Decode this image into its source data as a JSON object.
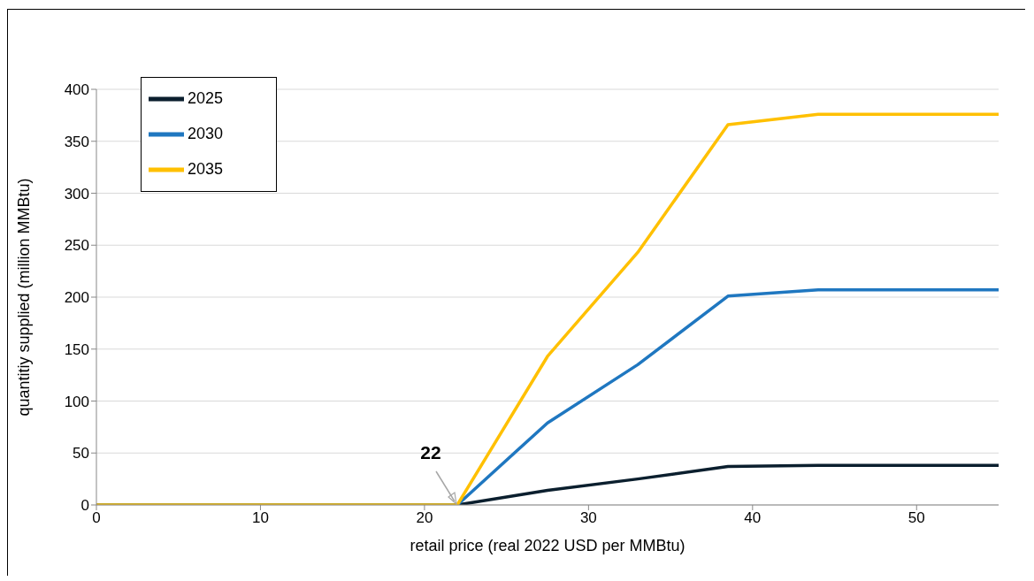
{
  "chart_data": {
    "type": "line",
    "xlabel": "retail price (real 2022 USD per MMBtu)",
    "ylabel": "quantitiy supplied (million MMBtu)",
    "x": [
      0,
      22,
      27.5,
      33,
      38.5,
      44,
      55
    ],
    "series": [
      {
        "name": "2025",
        "color": "#0b1f2e",
        "values": [
          0,
          0,
          14,
          25,
          37,
          38,
          38
        ]
      },
      {
        "name": "2030",
        "color": "#1f77c0",
        "values": [
          0,
          0,
          79,
          135,
          201,
          207,
          207
        ]
      },
      {
        "name": "2035",
        "color": "#ffc000",
        "values": [
          0,
          0,
          143,
          243,
          366,
          376,
          376
        ]
      }
    ],
    "xlim": [
      0,
      55
    ],
    "xticks": [
      0,
      10,
      20,
      30,
      40,
      50
    ],
    "ylim": [
      0,
      400
    ],
    "yticks": [
      0,
      50,
      100,
      150,
      200,
      250,
      300,
      350,
      400
    ],
    "grid": "y",
    "legend": "top left",
    "marker": "none",
    "line_style": "solid",
    "annotations": [
      {
        "text": "22",
        "x": 22,
        "y": 0
      }
    ]
  }
}
